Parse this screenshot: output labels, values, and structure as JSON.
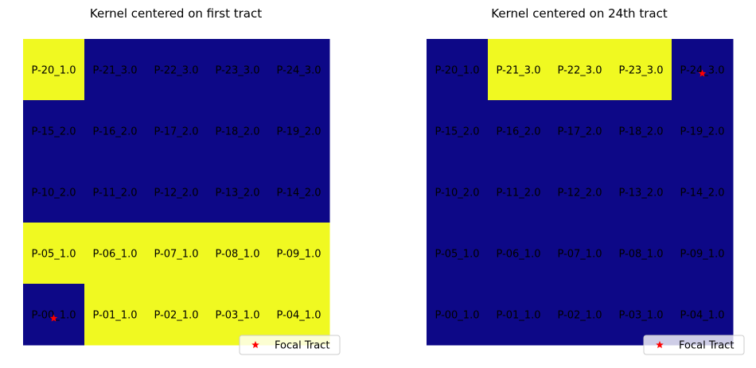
{
  "colors": {
    "low": "#0d0887",
    "high": "#f0f921",
    "marker": "#ff0000",
    "legend_border": "#cccccc"
  },
  "chart_data": [
    {
      "type": "heatmap",
      "title": "Kernel centered on first tract",
      "xlabel": "",
      "ylabel": "",
      "grid": false,
      "legend": {
        "position": "bottom-right",
        "entries": [
          "Focal Tract"
        ]
      },
      "focal": {
        "row": 0,
        "col": 0
      },
      "rows": [
        {
          "labels": [
            "P-20_1.0",
            "P-21_3.0",
            "P-22_3.0",
            "P-23_3.0",
            "P-24_3.0"
          ],
          "values": [
            1,
            0,
            0,
            0,
            0
          ]
        },
        {
          "labels": [
            "P-15_2.0",
            "P-16_2.0",
            "P-17_2.0",
            "P-18_2.0",
            "P-19_2.0"
          ],
          "values": [
            0,
            0,
            0,
            0,
            0
          ]
        },
        {
          "labels": [
            "P-10_2.0",
            "P-11_2.0",
            "P-12_2.0",
            "P-13_2.0",
            "P-14_2.0"
          ],
          "values": [
            0,
            0,
            0,
            0,
            0
          ]
        },
        {
          "labels": [
            "P-05_1.0",
            "P-06_1.0",
            "P-07_1.0",
            "P-08_1.0",
            "P-09_1.0"
          ],
          "values": [
            1,
            1,
            1,
            1,
            1
          ]
        },
        {
          "labels": [
            "P-00_1.0",
            "P-01_1.0",
            "P-02_1.0",
            "P-03_1.0",
            "P-04_1.0"
          ],
          "values": [
            0,
            1,
            1,
            1,
            1
          ]
        }
      ]
    },
    {
      "type": "heatmap",
      "title": "Kernel centered on 24th tract",
      "xlabel": "",
      "ylabel": "",
      "grid": false,
      "legend": {
        "position": "bottom-right",
        "entries": [
          "Focal Tract"
        ]
      },
      "focal": {
        "row": 4,
        "col": 4
      },
      "rows": [
        {
          "labels": [
            "P-20_1.0",
            "P-21_3.0",
            "P-22_3.0",
            "P-23_3.0",
            "P-24_3.0"
          ],
          "values": [
            0,
            1,
            1,
            1,
            0
          ]
        },
        {
          "labels": [
            "P-15_2.0",
            "P-16_2.0",
            "P-17_2.0",
            "P-18_2.0",
            "P-19_2.0"
          ],
          "values": [
            0,
            0,
            0,
            0,
            0
          ]
        },
        {
          "labels": [
            "P-10_2.0",
            "P-11_2.0",
            "P-12_2.0",
            "P-13_2.0",
            "P-14_2.0"
          ],
          "values": [
            0,
            0,
            0,
            0,
            0
          ]
        },
        {
          "labels": [
            "P-05_1.0",
            "P-06_1.0",
            "P-07_1.0",
            "P-08_1.0",
            "P-09_1.0"
          ],
          "values": [
            0,
            0,
            0,
            0,
            0
          ]
        },
        {
          "labels": [
            "P-00_1.0",
            "P-01_1.0",
            "P-02_1.0",
            "P-03_1.0",
            "P-04_1.0"
          ],
          "values": [
            0,
            0,
            0,
            0,
            0
          ]
        }
      ]
    }
  ]
}
